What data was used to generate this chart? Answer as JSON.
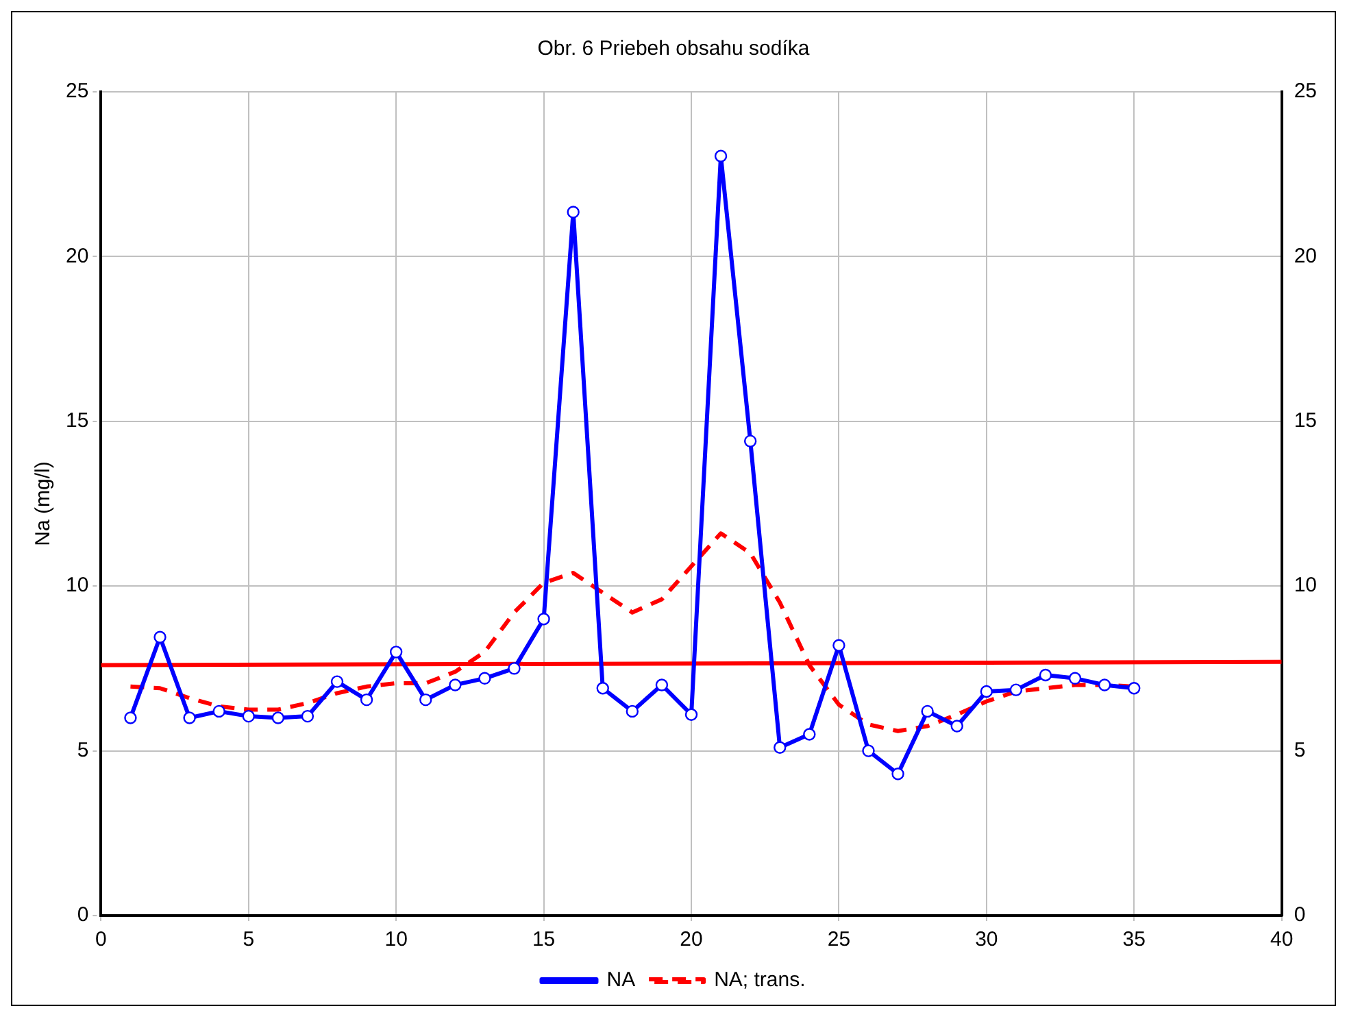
{
  "chart_data": {
    "type": "line",
    "title": "Obr. 6 Priebeh obsahu sodíka",
    "ylabel": "Na (mg/l)",
    "x": [
      1,
      2,
      3,
      4,
      5,
      6,
      7,
      8,
      9,
      10,
      11,
      12,
      13,
      14,
      15,
      16,
      17,
      18,
      19,
      20,
      21,
      22,
      23,
      24,
      25,
      26,
      27,
      28,
      29,
      30,
      31,
      32,
      33,
      34,
      35
    ],
    "series": [
      {
        "name": "NA",
        "color": "#0000ff",
        "marker": "circle",
        "line_style": "solid",
        "values": [
          6.0,
          8.45,
          6.0,
          6.2,
          6.05,
          6.0,
          6.05,
          7.1,
          6.55,
          8.0,
          6.55,
          7.0,
          7.2,
          7.5,
          9.0,
          21.35,
          6.9,
          6.2,
          7.0,
          6.1,
          23.05,
          14.4,
          5.1,
          5.5,
          8.2,
          5.0,
          4.3,
          6.2,
          5.75,
          6.8,
          6.85,
          7.3,
          7.2,
          7.0,
          6.9
        ]
      },
      {
        "name": "NA; trans.",
        "color": "#ff0000",
        "marker": "none",
        "line_style": "dashed",
        "values": [
          6.95,
          6.9,
          6.6,
          6.35,
          6.25,
          6.25,
          6.45,
          6.75,
          6.95,
          7.05,
          7.05,
          7.4,
          8.0,
          9.2,
          10.1,
          10.4,
          9.8,
          9.2,
          9.6,
          10.6,
          11.6,
          11.0,
          9.5,
          7.6,
          6.4,
          5.8,
          5.6,
          5.75,
          6.1,
          6.5,
          6.8,
          6.9,
          7.0,
          7.0,
          6.95
        ]
      },
      {
        "type": "line",
        "color": "#ff0000",
        "marker": "none",
        "line_style": "solid",
        "x": [
          0,
          40
        ],
        "values": [
          7.6,
          7.7
        ]
      }
    ],
    "xlim": [
      0,
      40
    ],
    "xticks": [
      0,
      5,
      10,
      15,
      20,
      25,
      30,
      35,
      40
    ],
    "ylim": [
      0,
      25
    ],
    "yticks": [
      0,
      5,
      10,
      15,
      20,
      25
    ],
    "y2lim": [
      0,
      25
    ],
    "y2ticks": [
      0,
      5,
      10,
      15,
      20,
      25
    ],
    "grid": true,
    "legend": "bottom"
  }
}
